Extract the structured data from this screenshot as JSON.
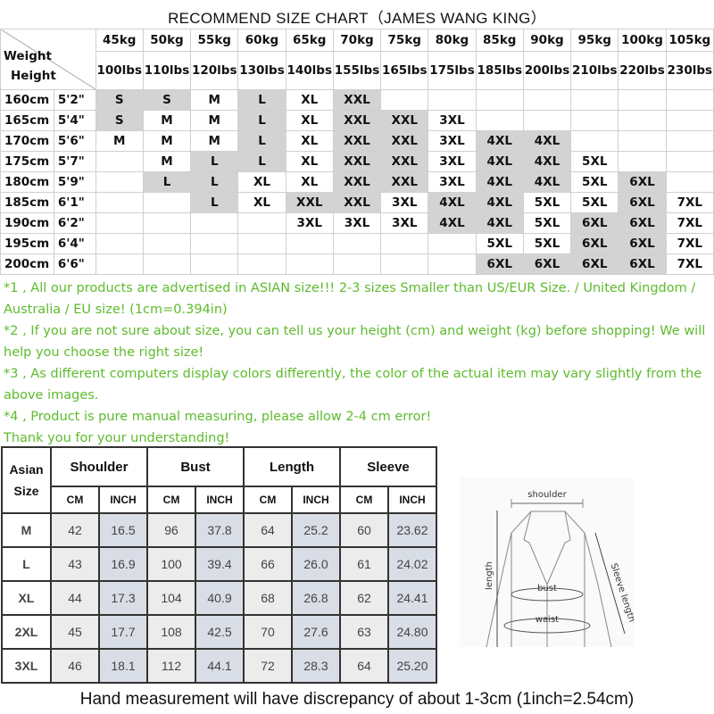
{
  "title": "RECOMMEND SIZE CHART（JAMES WANG KING）",
  "size_chart": {
    "corner_label_weight": "Weight",
    "corner_label_height": "Height",
    "weights_kg": [
      "45kg",
      "50kg",
      "55kg",
      "60kg",
      "65kg",
      "70kg",
      "75kg",
      "80kg",
      "85kg",
      "90kg",
      "95kg",
      "100kg",
      "105kg"
    ],
    "weights_lbs": [
      "100lbs",
      "110lbs",
      "120lbs",
      "130lbs",
      "140lbs",
      "155lbs",
      "165lbs",
      "175lbs",
      "185lbs",
      "200lbs",
      "210lbs",
      "220lbs",
      "230lbs"
    ],
    "shade_color": "#d3d3d3",
    "rows": [
      {
        "cm": "160cm",
        "ft": "5'2\"",
        "sizes": [
          "S",
          "S",
          "M",
          "L",
          "XL",
          "XXL",
          "",
          "",
          "",
          "",
          "",
          "",
          ""
        ],
        "shaded": [
          1,
          1,
          0,
          1,
          0,
          1,
          0,
          0,
          0,
          0,
          0,
          0,
          0
        ]
      },
      {
        "cm": "165cm",
        "ft": "5'4\"",
        "sizes": [
          "S",
          "M",
          "M",
          "L",
          "XL",
          "XXL",
          "XXL",
          "3XL",
          "",
          "",
          "",
          "",
          ""
        ],
        "shaded": [
          1,
          0,
          0,
          1,
          0,
          1,
          1,
          0,
          0,
          0,
          0,
          0,
          0
        ]
      },
      {
        "cm": "170cm",
        "ft": "5'6\"",
        "sizes": [
          "M",
          "M",
          "M",
          "L",
          "XL",
          "XXL",
          "XXL",
          "3XL",
          "4XL",
          "4XL",
          "",
          "",
          ""
        ],
        "shaded": [
          0,
          0,
          0,
          1,
          0,
          1,
          1,
          0,
          1,
          1,
          0,
          0,
          0
        ]
      },
      {
        "cm": "175cm",
        "ft": "5'7\"",
        "sizes": [
          "",
          "M",
          "L",
          "L",
          "XL",
          "XXL",
          "XXL",
          "3XL",
          "4XL",
          "4XL",
          "5XL",
          "",
          ""
        ],
        "shaded": [
          0,
          0,
          1,
          1,
          0,
          1,
          1,
          0,
          1,
          1,
          0,
          0,
          0
        ]
      },
      {
        "cm": "180cm",
        "ft": "5'9\"",
        "sizes": [
          "",
          "L",
          "L",
          "XL",
          "XL",
          "XXL",
          "XXL",
          "3XL",
          "4XL",
          "4XL",
          "5XL",
          "6XL",
          ""
        ],
        "shaded": [
          0,
          1,
          1,
          0,
          0,
          1,
          1,
          0,
          1,
          1,
          0,
          1,
          0
        ]
      },
      {
        "cm": "185cm",
        "ft": "6'1\"",
        "sizes": [
          "",
          "",
          "L",
          "XL",
          "XXL",
          "XXL",
          "3XL",
          "4XL",
          "4XL",
          "5XL",
          "5XL",
          "6XL",
          "7XL"
        ],
        "shaded": [
          0,
          0,
          1,
          0,
          1,
          1,
          0,
          1,
          1,
          0,
          0,
          1,
          0
        ]
      },
      {
        "cm": "190cm",
        "ft": "6'2\"",
        "sizes": [
          "",
          "",
          "",
          "",
          "3XL",
          "3XL",
          "3XL",
          "4XL",
          "4XL",
          "5XL",
          "6XL",
          "6XL",
          "7XL"
        ],
        "shaded": [
          0,
          0,
          0,
          0,
          0,
          0,
          0,
          1,
          1,
          0,
          1,
          1,
          0
        ]
      },
      {
        "cm": "195cm",
        "ft": "6'4\"",
        "sizes": [
          "",
          "",
          "",
          "",
          "",
          "",
          "",
          "",
          "5XL",
          "5XL",
          "6XL",
          "6XL",
          "7XL"
        ],
        "shaded": [
          0,
          0,
          0,
          0,
          0,
          0,
          0,
          0,
          0,
          0,
          1,
          1,
          0
        ]
      },
      {
        "cm": "200cm",
        "ft": "6'6\"",
        "sizes": [
          "",
          "",
          "",
          "",
          "",
          "",
          "",
          "",
          "6XL",
          "6XL",
          "6XL",
          "6XL",
          "7XL"
        ],
        "shaded": [
          0,
          0,
          0,
          0,
          0,
          0,
          0,
          0,
          1,
          1,
          1,
          1,
          0
        ]
      }
    ]
  },
  "notes_color": "#5dbb2d",
  "notes": [
    "*1 , All our products are advertised in ASIAN size!!! 2-3 sizes Smaller than US/EUR Size. / United Kingdom / Australia / EU size! (1cm=0.394in)",
    "*2 , If you are not sure about size, you can tell us your height (cm) and weight (kg) before shopping! We will help you choose the right size!",
    "*3 , As different computers display colors differently, the color of the actual item may vary slightly from the above images.",
    "*4 , Product is pure manual measuring, please allow 2-4 cm error!",
    "Thank you for your understanding!"
  ],
  "measurements": {
    "size_header": "Asian Size",
    "groups": [
      "Shoulder",
      "Bust",
      "Length",
      "Sleeve"
    ],
    "units": [
      "CM",
      "INCH"
    ],
    "rows": [
      {
        "size": "M",
        "values": [
          "42",
          "16.5",
          "96",
          "37.8",
          "64",
          "25.2",
          "60",
          "23.62"
        ]
      },
      {
        "size": "L",
        "values": [
          "43",
          "16.9",
          "100",
          "39.4",
          "66",
          "26.0",
          "61",
          "24.02"
        ]
      },
      {
        "size": "XL",
        "values": [
          "44",
          "17.3",
          "104",
          "40.9",
          "68",
          "26.8",
          "62",
          "24.41"
        ]
      },
      {
        "size": "2XL",
        "values": [
          "45",
          "17.7",
          "108",
          "42.5",
          "70",
          "27.6",
          "63",
          "24.80"
        ]
      },
      {
        "size": "3XL",
        "values": [
          "46",
          "18.1",
          "112",
          "44.1",
          "72",
          "28.3",
          "64",
          "25.20"
        ]
      }
    ]
  },
  "diagram": {
    "labels": {
      "shoulder": "shoulder",
      "length": "length",
      "bust": "bust",
      "waist": "waist",
      "sleeve": "Sleeve length"
    }
  },
  "footer": "Hand measurement will have discrepancy of about 1-3cm (1inch=2.54cm)"
}
